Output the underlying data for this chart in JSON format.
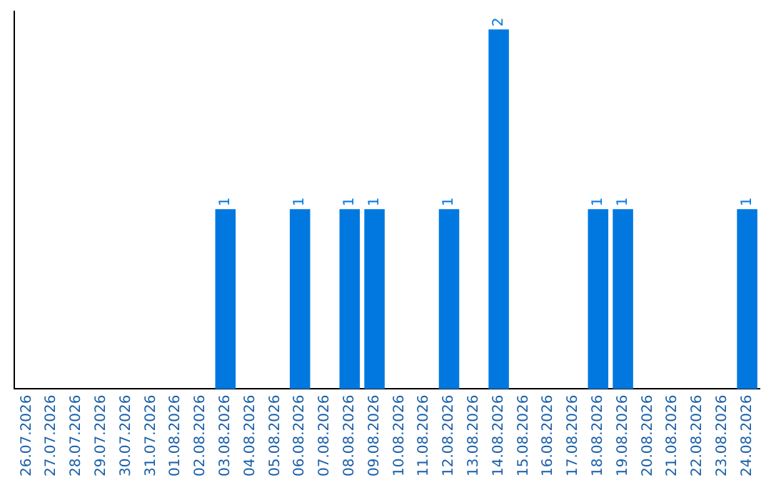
{
  "chart_data": {
    "type": "bar",
    "categories": [
      "26.07.2026",
      "27.07.2026",
      "28.07.2026",
      "29.07.2026",
      "30.07.2026",
      "31.07.2026",
      "01.08.2026",
      "02.08.2026",
      "03.08.2026",
      "04.08.2026",
      "05.08.2026",
      "06.08.2026",
      "07.08.2026",
      "08.08.2026",
      "09.08.2026",
      "10.08.2026",
      "11.08.2026",
      "12.08.2026",
      "13.08.2026",
      "14.08.2026",
      "15.08.2026",
      "16.08.2026",
      "17.08.2026",
      "18.08.2026",
      "19.08.2026",
      "20.08.2026",
      "21.08.2026",
      "22.08.2026",
      "23.08.2026",
      "24.08.2026"
    ],
    "values": [
      0,
      0,
      0,
      0,
      0,
      0,
      0,
      0,
      1,
      0,
      0,
      1,
      0,
      1,
      1,
      0,
      0,
      1,
      0,
      2,
      0,
      0,
      0,
      1,
      1,
      0,
      0,
      0,
      0,
      1
    ],
    "value_labels": [
      null,
      null,
      null,
      null,
      null,
      null,
      null,
      null,
      "1",
      null,
      null,
      "1",
      null,
      "1",
      "1",
      null,
      null,
      "1",
      null,
      "2",
      null,
      null,
      null,
      "1",
      "1",
      null,
      null,
      null,
      null,
      "1"
    ],
    "color": "#0078e0",
    "ylim": [
      0,
      2.1
    ],
    "grid": false,
    "legend": false,
    "tick_labels": "x"
  }
}
